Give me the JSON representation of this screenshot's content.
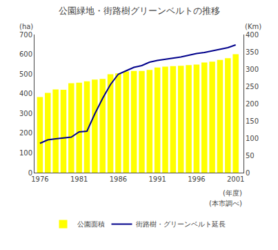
{
  "chart_data": {
    "type": "bar",
    "title": "公園緑地・街路樹グリーンベルトの推移",
    "x": [
      1976,
      1977,
      1978,
      1979,
      1980,
      1981,
      1982,
      1983,
      1984,
      1985,
      1986,
      1987,
      1988,
      1989,
      1990,
      1991,
      1992,
      1993,
      1994,
      1995,
      1996,
      1997,
      1998,
      1999,
      2000,
      2001
    ],
    "series": [
      {
        "name": "公園面積",
        "type": "bar",
        "color": "#FFFF00",
        "values": [
          383,
          404,
          422,
          420,
          453,
          456,
          463,
          472,
          475,
          499,
          503,
          513,
          515,
          515,
          521,
          533,
          537,
          540,
          542,
          545,
          548,
          558,
          563,
          571,
          580,
          600
        ]
      },
      {
        "name": "街路樹・グリーンベルト延長",
        "type": "line",
        "axis": "y2",
        "color": "#00008B",
        "values": [
          85,
          95,
          98,
          100,
          103,
          118,
          120,
          170,
          215,
          255,
          285,
          295,
          305,
          310,
          320,
          325,
          328,
          332,
          335,
          340,
          345,
          348,
          353,
          358,
          362,
          370
        ]
      }
    ],
    "xlim": [
      1975.3,
      2002.0
    ],
    "xticks": [
      1976,
      1981,
      1986,
      1991,
      1996,
      2001
    ],
    "ylim": [
      0,
      700
    ],
    "yticks": [
      0,
      100,
      200,
      300,
      400,
      500,
      600,
      700
    ],
    "y2lim": [
      0,
      400
    ],
    "y2ticks": [
      0,
      50,
      100,
      150,
      200,
      250,
      300,
      350,
      400
    ],
    "ylabel": "(ha)",
    "y2label": "(Km)",
    "annotations": [
      "(年度)",
      "(本市調べ)"
    ],
    "legend": "bottom",
    "grid": false
  }
}
